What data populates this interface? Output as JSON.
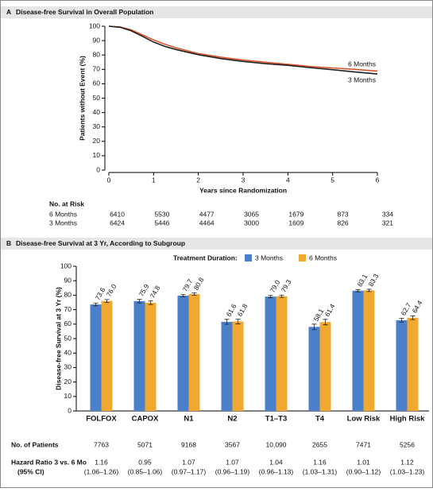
{
  "chart_data": [
    {
      "type": "line",
      "panel": "A",
      "title": "Disease-free Survival in Overall Population",
      "x_label": "Years since Randomization",
      "y_label": "Patients without Event (%)",
      "x": [
        0,
        0.25,
        0.5,
        0.75,
        1,
        1.25,
        1.5,
        1.75,
        2,
        2.5,
        3,
        3.5,
        4,
        4.5,
        5,
        5.5,
        6
      ],
      "series": [
        {
          "name": "6 Months",
          "color": "#d9532c",
          "values": [
            100,
            99.5,
            97.5,
            94,
            90.5,
            87.5,
            85,
            83,
            81,
            78.5,
            76.5,
            75,
            73.5,
            72,
            71,
            70,
            68.8
          ]
        },
        {
          "name": "3 Months",
          "color": "#231f20",
          "values": [
            100,
            99.3,
            96.8,
            93,
            89,
            86,
            83.8,
            82,
            80.2,
            77.5,
            75.5,
            74,
            72.8,
            71.2,
            69.8,
            68.2,
            66.8
          ]
        }
      ],
      "xlim": [
        0,
        6
      ],
      "xticks": [
        0,
        1,
        2,
        3,
        4,
        5,
        6
      ],
      "ylim": [
        0,
        100
      ],
      "yticks": [
        0,
        10,
        20,
        30,
        40,
        50,
        60,
        70,
        80,
        90,
        100
      ],
      "risk_table": {
        "title": "No. at Risk",
        "rows": [
          {
            "name": "6 Months",
            "values": [
              6410,
              5530,
              4477,
              3065,
              1679,
              873,
              334
            ]
          },
          {
            "name": "3 Months",
            "values": [
              6424,
              5446,
              4464,
              3000,
              1609,
              826,
              321
            ]
          }
        ]
      }
    },
    {
      "type": "bar",
      "panel": "B",
      "title": "Disease-free Survival at 3 Yr, According to Subgroup",
      "y_label": "Disease-free Survival at 3 Yr (%)",
      "legend_title": "Treatment Duration:",
      "categories": [
        "FOLFOX",
        "CAPOX",
        "N1",
        "N2",
        "T1–T3",
        "T4",
        "Low Risk",
        "High Risk"
      ],
      "series": [
        {
          "name": "3 Months",
          "color": "#4a7fc9",
          "values": [
            73.6,
            75.9,
            79.7,
            61.6,
            79.0,
            58.1,
            83.1,
            62.7
          ],
          "value_labels": [
            "73.6",
            "75.9",
            "79.7",
            "61.6",
            "79.0",
            "58.1",
            "83.1",
            "62.7"
          ],
          "errors": [
            1.0,
            1.2,
            0.8,
            1.7,
            0.8,
            1.9,
            0.8,
            1.3
          ]
        },
        {
          "name": "6 Months",
          "color": "#f0a830",
          "values": [
            76.0,
            74.8,
            80.8,
            61.8,
            79.3,
            61.4,
            83.3,
            64.4
          ],
          "value_labels": [
            "76.0",
            "74.8",
            "80.8",
            "61.8",
            "79.3",
            "61.4",
            "83.3",
            "64.4"
          ],
          "errors": [
            1.0,
            1.2,
            0.8,
            1.6,
            0.8,
            1.9,
            0.8,
            1.3
          ]
        }
      ],
      "ylim": [
        0,
        100
      ],
      "yticks": [
        0,
        10,
        20,
        30,
        40,
        50,
        60,
        70,
        80,
        90,
        100
      ],
      "patients": {
        "title": "No. of Patients",
        "values": [
          7763,
          5071,
          9168,
          3567,
          {
            "value": 10090,
            "label": "10,090"
          },
          2655,
          7471,
          5256
        ]
      },
      "hazard_ratio": {
        "title": [
          "Hazard Ratio 3 vs. 6 Mo",
          "(95% CI)"
        ],
        "values": [
          1.16,
          0.95,
          1.07,
          1.07,
          1.04,
          1.16,
          1.01,
          1.12
        ],
        "ci": [
          "(1.06–1.26)",
          "(0.85–1.06)",
          "(0.97–1.17)",
          "(0.96–1.19)",
          "(0.96–1.13)",
          "(1.03–1.31)",
          "(0.90–1.12)",
          "(1.03–1.23)"
        ]
      }
    }
  ]
}
